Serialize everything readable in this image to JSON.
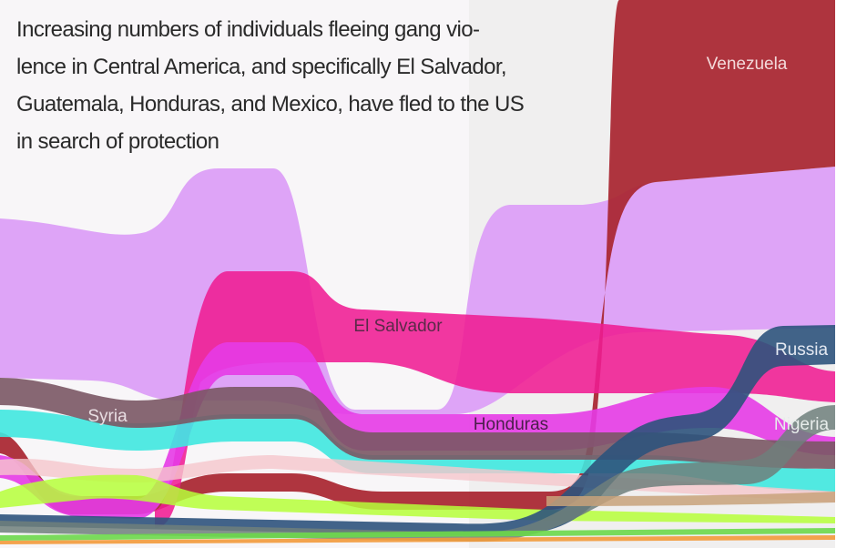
{
  "caption": {
    "lines": [
      "Increasing numbers of individuals fleeing gang vio-",
      "lence in Central America, and specifically El Salvador,",
      "Guatemala, Honduras, and Mexico, have fled to the US",
      "in search of protection"
    ]
  },
  "labels": [
    "Venezuela",
    "El Salvador",
    "Syria",
    "Honduras",
    "Russia",
    "Nigeria"
  ]
}
